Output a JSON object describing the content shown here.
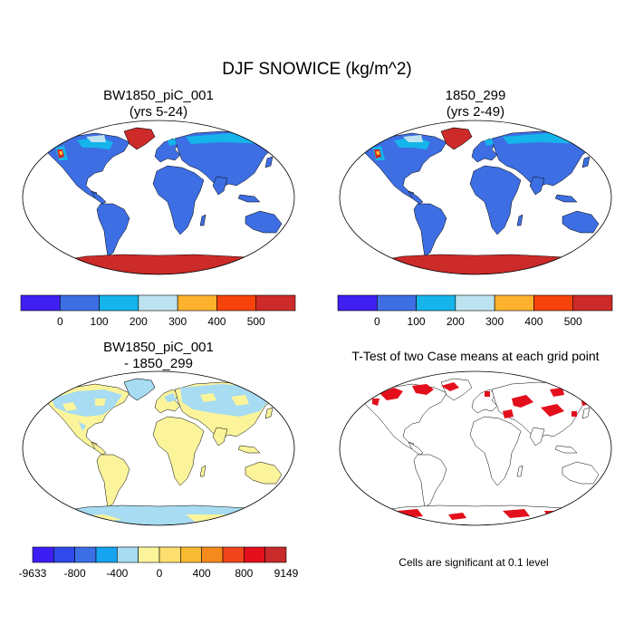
{
  "figure": {
    "title": "DJF SNOWICE (kg/m^2)",
    "panels": [
      {
        "id": "case",
        "title_line1": "BW1850_piC_001",
        "title_line2": "(yrs 5-24)"
      },
      {
        "id": "control",
        "title_line1": "1850_299",
        "title_line2": "(yrs 2-49)"
      },
      {
        "id": "diff",
        "title_line1": "BW1850_piC_001",
        "title_line2": "- 1850_299"
      },
      {
        "id": "ttest",
        "title_line1": "T-Test of two Case means at each grid point",
        "title_line2": ""
      }
    ],
    "footnote": "Cells are significant at 0.1 level"
  },
  "colorbars": {
    "mean": {
      "colors": [
        "#3f1ff2",
        "#3d6ee3",
        "#15b4ea",
        "#bde3f0",
        "#fdb12d",
        "#f6430c",
        "#cd2a2a"
      ],
      "labels": [
        "0",
        "100",
        "200",
        "300",
        "400",
        "500"
      ]
    },
    "diff": {
      "colors": [
        "#3c1ef5",
        "#2f49ea",
        "#3b6fe3",
        "#16a3f0",
        "#a7dcf2",
        "#fbf49b",
        "#fdde6e",
        "#f7ba33",
        "#f58a1e",
        "#f1441c",
        "#e30f1c",
        "#c92a2a"
      ],
      "labels": [
        "-9633",
        "-800",
        "-400",
        "0",
        "400",
        "800",
        "9149"
      ]
    }
  },
  "colors": {
    "ocean": "#ffffff",
    "land_mean": "#3d6ee3",
    "ice_mean": "#cd2a2a",
    "snow_light": "#15b4ea",
    "snow_pale": "#bde3f0",
    "land_diff": "#fbf49b",
    "diff_blue": "#a7dcf2",
    "significant": "#e30f1c",
    "coastline": "#000000"
  }
}
